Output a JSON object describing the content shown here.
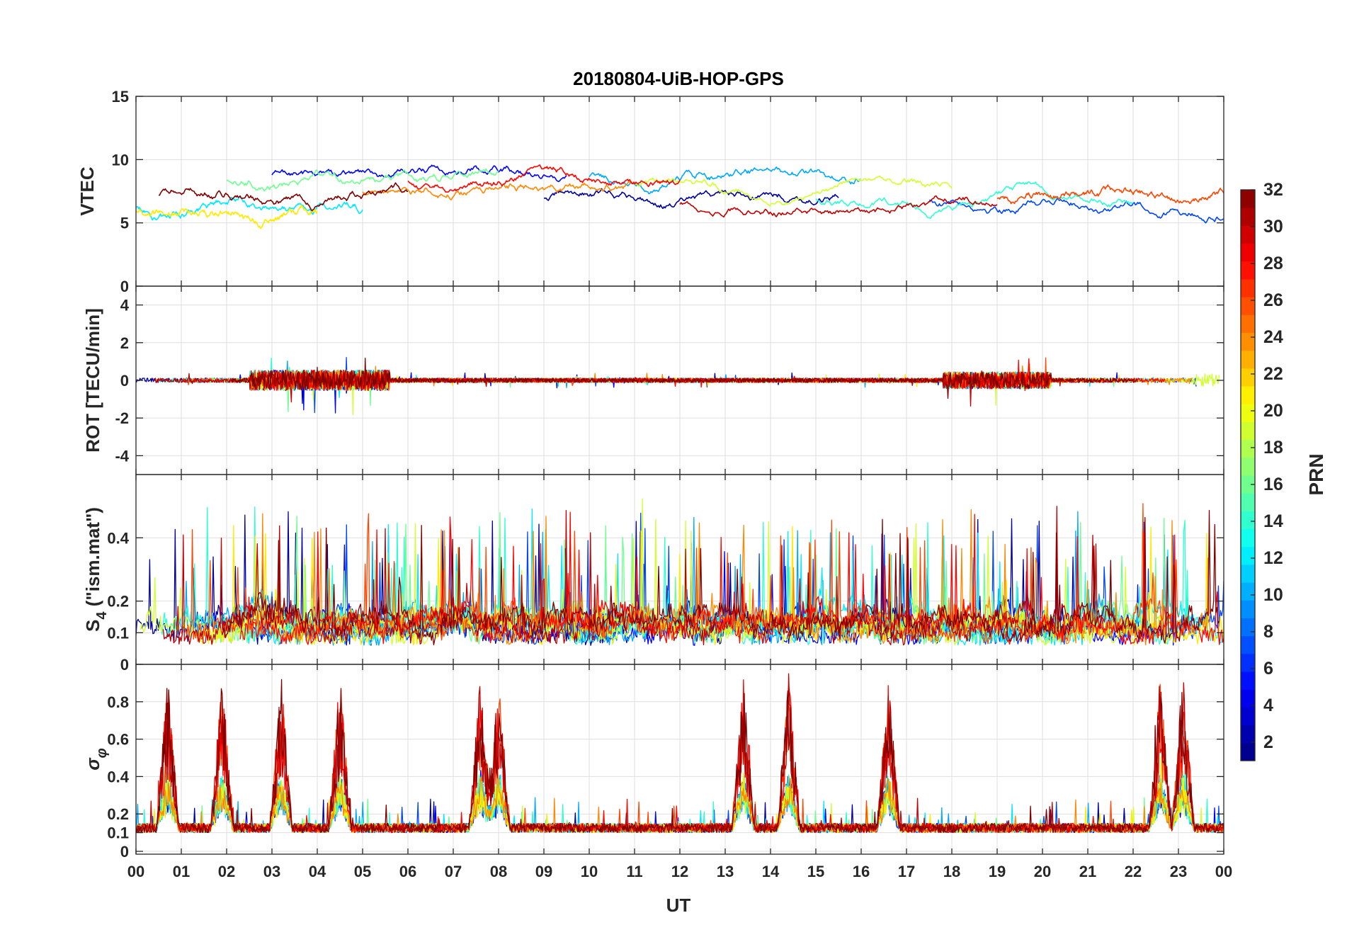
{
  "chart_data": {
    "type": "line",
    "title": "20180804-UiB-HOP-GPS",
    "xlabel": "UT",
    "x_tick_labels": [
      "00",
      "01",
      "02",
      "03",
      "04",
      "05",
      "06",
      "07",
      "08",
      "09",
      "10",
      "11",
      "12",
      "13",
      "14",
      "15",
      "16",
      "17",
      "18",
      "19",
      "20",
      "21",
      "22",
      "23",
      "00"
    ],
    "xlim": [
      0,
      24
    ],
    "panels": [
      {
        "id": "vtec",
        "ylabel": "VTEC",
        "ylim": [
          0,
          15
        ],
        "yticks": [
          0,
          5,
          10,
          15
        ],
        "ytick_labels": [
          "0",
          "5",
          "10",
          "15"
        ],
        "description_series": "VTEC per satellite PRN, mostly between 5 and 10 TECU"
      },
      {
        "id": "rot",
        "ylabel": "ROT [TECU/min]",
        "ylim": [
          -5,
          5
        ],
        "yticks": [
          -4,
          -2,
          0,
          2,
          4
        ],
        "ytick_labels": [
          "-4",
          "-2",
          "0",
          "2",
          "4"
        ]
      },
      {
        "id": "s4",
        "ylabel_main": "S",
        "ylabel_sub": "4",
        "ylabel_rest": " (\"ism.mat\")",
        "ylim": [
          0,
          0.6
        ],
        "yticks": [
          0,
          0.1,
          0.2,
          0.4
        ],
        "ytick_labels": [
          "0",
          "0.1",
          "0.2",
          "0.4"
        ]
      },
      {
        "id": "sigma",
        "ylabel_main": "σ",
        "ylabel_sub": "φ",
        "ylim": [
          0,
          1
        ],
        "yticks": [
          0,
          0.1,
          0.2,
          0.4,
          0.6,
          0.8
        ],
        "ytick_labels": [
          "0",
          "0.1",
          "0.2",
          "0.4",
          "0.6",
          "0.8"
        ]
      }
    ],
    "colorbar": {
      "label": "PRN",
      "range": [
        1,
        32
      ],
      "ticks": [
        2,
        4,
        6,
        8,
        10,
        12,
        14,
        16,
        18,
        20,
        22,
        24,
        26,
        28,
        30,
        32
      ],
      "tick_labels": [
        "2",
        "4",
        "6",
        "8",
        "10",
        "12",
        "14",
        "16",
        "18",
        "20",
        "22",
        "24",
        "26",
        "28",
        "30",
        "32"
      ],
      "colormap": "jet"
    },
    "series_prns": [
      2,
      5,
      7,
      10,
      12,
      14,
      16,
      19,
      21,
      24,
      26,
      28,
      30,
      32
    ],
    "vtec_baselines": [
      {
        "prn": 2,
        "start": 9.0,
        "end": 15.5,
        "level": 7.0
      },
      {
        "prn": 5,
        "start": 3.0,
        "end": 9.5,
        "level": 8.8
      },
      {
        "prn": 7,
        "start": 17.5,
        "end": 24.0,
        "level": 6.8
      },
      {
        "prn": 10,
        "start": 10.0,
        "end": 16.0,
        "level": 8.6
      },
      {
        "prn": 12,
        "start": 0.0,
        "end": 5.0,
        "level": 6.2
      },
      {
        "prn": 14,
        "start": 15.0,
        "end": 22.0,
        "level": 6.8
      },
      {
        "prn": 16,
        "start": 2.0,
        "end": 8.0,
        "level": 8.2
      },
      {
        "prn": 19,
        "start": 11.0,
        "end": 18.0,
        "level": 8.0
      },
      {
        "prn": 21,
        "start": 0.0,
        "end": 4.0,
        "level": 6.0
      },
      {
        "prn": 24,
        "start": 5.0,
        "end": 11.0,
        "level": 7.6
      },
      {
        "prn": 26,
        "start": 19.0,
        "end": 24.0,
        "level": 7.0
      },
      {
        "prn": 28,
        "start": 6.0,
        "end": 12.0,
        "level": 8.4
      },
      {
        "prn": 30,
        "start": 12.0,
        "end": 19.0,
        "level": 6.5
      },
      {
        "prn": 32,
        "start": 0.5,
        "end": 6.0,
        "level": 7.2
      }
    ],
    "sigma_peaks_ut": [
      0.7,
      1.9,
      3.2,
      4.5,
      7.6,
      8.0,
      13.4,
      14.4,
      16.6,
      22.6,
      23.1
    ]
  }
}
